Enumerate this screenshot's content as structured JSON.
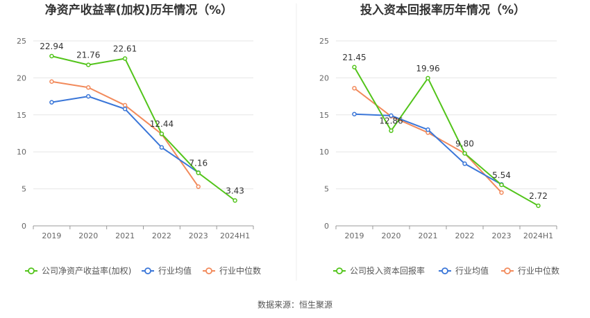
{
  "colors": {
    "company": "#52c41a",
    "industry_avg": "#3a76d8",
    "industry_median": "#f28a5b",
    "grid": "#e6e6e6",
    "axis": "#999999",
    "divider": "#eeeeee"
  },
  "source_text": "数据来源：恒生聚源",
  "chart_data": [
    {
      "type": "line",
      "title": "净资产收益率(加权)历年情况（%）",
      "categories": [
        "2019",
        "2020",
        "2021",
        "2022",
        "2023",
        "2024H1"
      ],
      "ylim": [
        0,
        25
      ],
      "yticks": [
        "0",
        "5",
        "10",
        "15",
        "20",
        "25"
      ],
      "grid": true,
      "legend": "bottom",
      "series": [
        {
          "name": "公司净资产收益率(加权)",
          "key": "company",
          "values": [
            22.94,
            21.76,
            22.61,
            12.44,
            7.16,
            3.43
          ],
          "labels": [
            "22.94",
            "21.76",
            "22.61",
            "12.44",
            "7.16",
            "3.43"
          ]
        },
        {
          "name": "行业均值",
          "key": "industry_avg",
          "values": [
            16.7,
            17.5,
            15.8,
            10.6,
            7.2,
            null
          ]
        },
        {
          "name": "行业中位数",
          "key": "industry_median",
          "values": [
            19.5,
            18.7,
            16.3,
            12.4,
            5.3,
            null
          ]
        }
      ]
    },
    {
      "type": "line",
      "title": "投入资本回报率历年情况（%）",
      "categories": [
        "2019",
        "2020",
        "2021",
        "2022",
        "2023",
        "2024H1"
      ],
      "ylim": [
        0,
        25
      ],
      "yticks": [
        "0",
        "5",
        "10",
        "15",
        "20",
        "25"
      ],
      "grid": true,
      "legend": "bottom",
      "series": [
        {
          "name": "公司投入资本回报率",
          "key": "company",
          "values": [
            21.45,
            12.86,
            19.96,
            9.8,
            5.54,
            2.72
          ],
          "labels": [
            "21.45",
            "12.86",
            "19.96",
            "9.80",
            "5.54",
            "2.72"
          ]
        },
        {
          "name": "行业均值",
          "key": "industry_avg",
          "values": [
            15.1,
            14.9,
            13.0,
            8.4,
            5.6,
            null
          ]
        },
        {
          "name": "行业中位数",
          "key": "industry_median",
          "values": [
            18.6,
            14.8,
            12.6,
            9.8,
            4.5,
            null
          ]
        }
      ]
    }
  ]
}
